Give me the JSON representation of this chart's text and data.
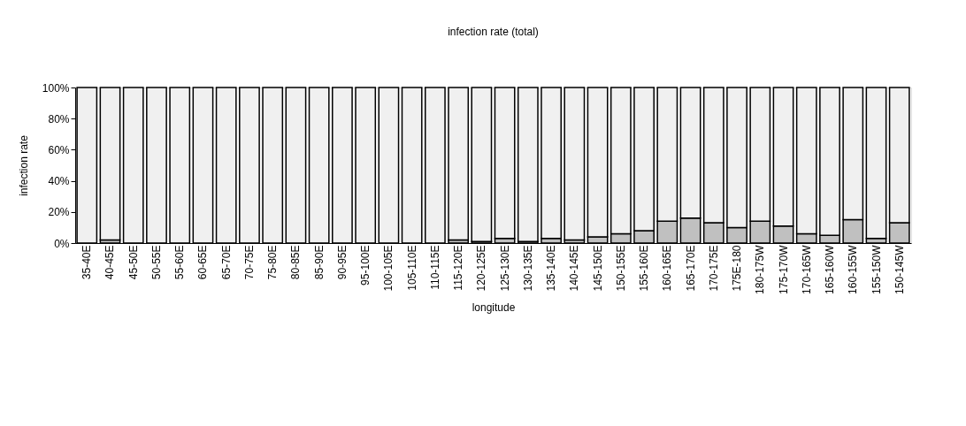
{
  "chart_data": {
    "type": "bar",
    "title": "infection rate (total)",
    "xlabel": "longitude",
    "ylabel": "infection rate",
    "categories": [
      "35-40E",
      "40-45E",
      "45-50E",
      "50-55E",
      "55-60E",
      "60-65E",
      "65-70E",
      "70-75E",
      "75-80E",
      "80-85E",
      "85-90E",
      "90-95E",
      "95-100E",
      "100-105E",
      "105-110E",
      "110-115E",
      "115-120E",
      "120-125E",
      "125-130E",
      "130-135E",
      "135-140E",
      "140-145E",
      "145-150E",
      "150-155E",
      "155-160E",
      "160-165E",
      "165-170E",
      "170-175E",
      "175E-180",
      "180-175W",
      "175-170W",
      "170-165W",
      "165-160W",
      "160-155W",
      "155-150W",
      "150-145W"
    ],
    "stacked": true,
    "series": [
      {
        "color": "#c0c0c0",
        "values": [
          0,
          2,
          0,
          0,
          0,
          0,
          0,
          0,
          0,
          0,
          0,
          0,
          0,
          0,
          0,
          0,
          2,
          1,
          3,
          1,
          3,
          2,
          4,
          6,
          8,
          14,
          16,
          13,
          10,
          14,
          11,
          6,
          5,
          15,
          3,
          13
        ]
      },
      {
        "color": "#f0f0f0",
        "values": [
          100,
          98,
          100,
          100,
          100,
          100,
          100,
          100,
          100,
          100,
          100,
          100,
          100,
          100,
          100,
          100,
          98,
          99,
          97,
          99,
          97,
          98,
          96,
          94,
          92,
          86,
          84,
          87,
          90,
          86,
          89,
          94,
          95,
          85,
          97,
          87
        ]
      }
    ],
    "ylim": [
      0,
      100
    ],
    "yticks": [
      {
        "value": 0,
        "label": "0%"
      },
      {
        "value": 20,
        "label": "20%"
      },
      {
        "value": 40,
        "label": "40%"
      },
      {
        "value": 60,
        "label": "60%"
      },
      {
        "value": 80,
        "label": "80%"
      },
      {
        "value": 100,
        "label": "100%"
      }
    ],
    "grid": false,
    "legend": false
  }
}
